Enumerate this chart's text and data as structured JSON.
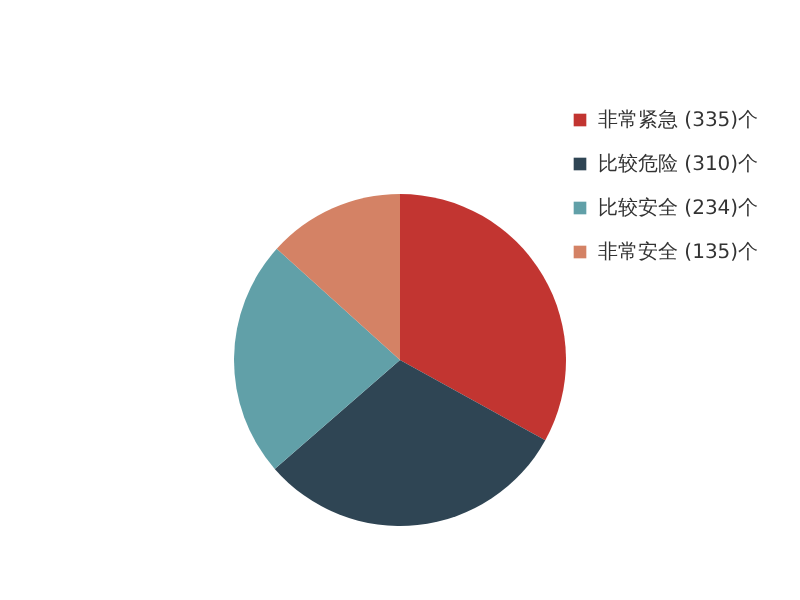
{
  "chart_data": {
    "type": "pie",
    "categories": [
      "非常紧急 (335)个",
      "比较危险 (310)个",
      "比较安全 (234)个",
      "非常安全 (135)个"
    ],
    "values": [
      335,
      310,
      234,
      135
    ],
    "colors": [
      "#c23531",
      "#2f4554",
      "#61a0a8",
      "#d48265"
    ],
    "legend": "top right"
  }
}
